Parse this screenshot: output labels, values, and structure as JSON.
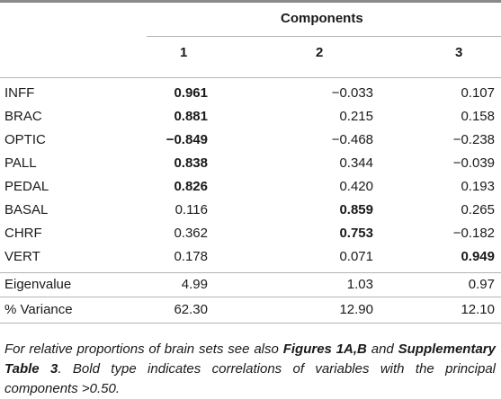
{
  "table": {
    "group_header": "Components",
    "columns": [
      "1",
      "2",
      "3"
    ],
    "rows": [
      {
        "label": "INFF",
        "values": [
          "0.961",
          "−0.033",
          "0.107"
        ],
        "bold": [
          true,
          false,
          false
        ]
      },
      {
        "label": "BRAC",
        "values": [
          "0.881",
          "0.215",
          "0.158"
        ],
        "bold": [
          true,
          false,
          false
        ]
      },
      {
        "label": "OPTIC",
        "values": [
          "−0.849",
          "−0.468",
          "−0.238"
        ],
        "bold": [
          true,
          false,
          false
        ]
      },
      {
        "label": "PALL",
        "values": [
          "0.838",
          "0.344",
          "−0.039"
        ],
        "bold": [
          true,
          false,
          false
        ]
      },
      {
        "label": "PEDAL",
        "values": [
          "0.826",
          "0.420",
          "0.193"
        ],
        "bold": [
          true,
          false,
          false
        ]
      },
      {
        "label": "BASAL",
        "values": [
          "0.116",
          "0.859",
          "0.265"
        ],
        "bold": [
          false,
          true,
          false
        ]
      },
      {
        "label": "CHRF",
        "values": [
          "0.362",
          "0.753",
          "−0.182"
        ],
        "bold": [
          false,
          true,
          false
        ]
      },
      {
        "label": "VERT",
        "values": [
          "0.178",
          "0.071",
          "0.949"
        ],
        "bold": [
          false,
          false,
          true
        ]
      }
    ],
    "summary_rows": [
      {
        "label": "Eigenvalue",
        "values": [
          "4.99",
          "1.03",
          "0.97"
        ]
      },
      {
        "label": "% Variance",
        "values": [
          "62.30",
          "12.90",
          "12.10"
        ]
      }
    ]
  },
  "footnote": {
    "part1": "For relative proportions of brain sets see also ",
    "ref1": "Figures 1A,B",
    "part2": " and ",
    "ref2": "Supplementary Table 3",
    "part3": ". Bold type indicates correlations of variables with the principal components >0.50."
  }
}
